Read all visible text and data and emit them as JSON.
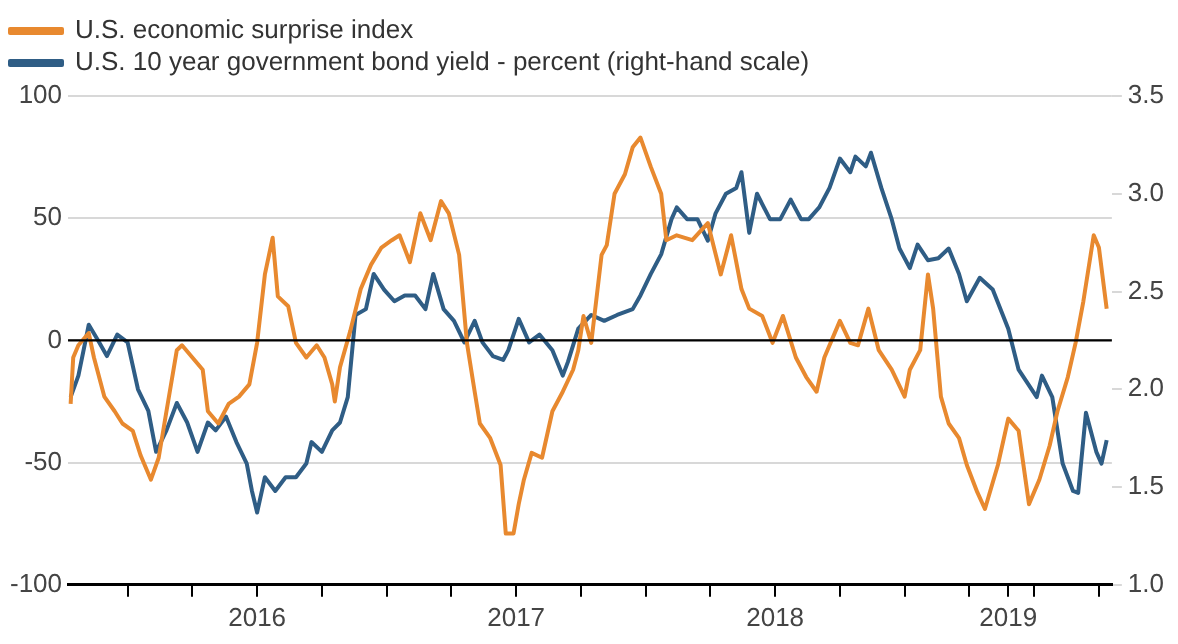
{
  "chart_data": {
    "type": "line",
    "legend": "top left",
    "grid": "y",
    "xlim": [
      2015.77,
      2019.8
    ],
    "xticks": [
      {
        "value": 2016,
        "label": null
      },
      {
        "value": 2016.25,
        "label": null
      },
      {
        "value": 2016.5,
        "label": "2016"
      },
      {
        "value": 2016.75,
        "label": null
      },
      {
        "value": 2017,
        "label": null
      },
      {
        "value": 2017.25,
        "label": null
      },
      {
        "value": 2017.5,
        "label": "2017"
      },
      {
        "value": 2017.75,
        "label": null
      },
      {
        "value": 2018,
        "label": null
      },
      {
        "value": 2018.25,
        "label": null
      },
      {
        "value": 2018.5,
        "label": "2018"
      },
      {
        "value": 2018.75,
        "label": null
      },
      {
        "value": 2019,
        "label": null
      },
      {
        "value": 2019.25,
        "label": null
      },
      {
        "value": 2019.4,
        "label": "2019"
      },
      {
        "value": 2019.5,
        "label": null
      },
      {
        "value": 2019.75,
        "label": null
      }
    ],
    "ylim": [
      -100,
      100
    ],
    "yticks": [
      -100,
      -50,
      0,
      50,
      100
    ],
    "y2lim": [
      1,
      3.5
    ],
    "y2ticks": [
      {
        "value": 1,
        "label": "1.0"
      },
      1.5,
      {
        "value": 2,
        "label": "2.0"
      },
      2.5,
      {
        "value": 3,
        "label": "3.0"
      },
      3.5
    ],
    "ref_lines": [
      {
        "axis": "y",
        "value": 0,
        "color": "#000000"
      }
    ],
    "series": [
      {
        "name": "U.S. economic surprise index",
        "color": "#e8892f",
        "x": [
          2015.78,
          2015.79,
          2015.81,
          2015.85,
          2015.87,
          2015.91,
          2015.95,
          2015.98,
          2016.02,
          2016.05,
          2016.09,
          2016.12,
          2016.15,
          2016.19,
          2016.21,
          2016.25,
          2016.29,
          2016.31,
          2016.35,
          2016.39,
          2016.43,
          2016.47,
          2016.5,
          2016.53,
          2016.56,
          2016.58,
          2016.62,
          2016.65,
          2016.69,
          2016.73,
          2016.76,
          2016.79,
          2016.8,
          2016.82,
          2016.86,
          2016.9,
          2016.94,
          2016.98,
          2017.02,
          2017.05,
          2017.09,
          2017.13,
          2017.17,
          2017.21,
          2017.24,
          2017.28,
          2017.31,
          2017.34,
          2017.36,
          2017.4,
          2017.44,
          2017.46,
          2017.49,
          2017.51,
          2017.53,
          2017.56,
          2017.6,
          2017.64,
          2017.68,
          2017.72,
          2017.74,
          2017.76,
          2017.79,
          2017.83,
          2017.85,
          2017.88,
          2017.92,
          2017.95,
          2017.98,
          2018.02,
          2018.06,
          2018.08,
          2018.12,
          2018.18,
          2018.24,
          2018.29,
          2018.33,
          2018.37,
          2018.4,
          2018.45,
          2018.49,
          2018.53,
          2018.58,
          2018.62,
          2018.66,
          2018.69,
          2018.75,
          2018.79,
          2018.82,
          2018.86,
          2018.9,
          2018.95,
          2019.0,
          2019.02,
          2019.06,
          2019.09,
          2019.11,
          2019.14,
          2019.17,
          2019.21,
          2019.24,
          2019.28,
          2019.31,
          2019.36,
          2019.4,
          2019.44,
          2019.48,
          2019.52,
          2019.56,
          2019.59,
          2019.63,
          2019.66,
          2019.69,
          2019.73,
          2019.75,
          2019.78
        ],
        "values": [
          -26,
          -7,
          -2,
          3,
          -7,
          -23,
          -29,
          -34,
          -37,
          -47,
          -57,
          -48,
          -29,
          -4,
          -2,
          -7,
          -12,
          -29,
          -34,
          -26,
          -23,
          -18,
          -1,
          27,
          42,
          18,
          14,
          -1,
          -7,
          -2,
          -7,
          -18,
          -25,
          -11,
          4,
          21,
          31,
          38,
          41,
          43,
          32,
          52,
          41,
          57,
          52,
          35,
          -1,
          -21,
          -34,
          -40,
          -51,
          -79,
          -79,
          -67,
          -57,
          -46,
          -48,
          -29,
          -21,
          -12,
          -4,
          10,
          -1,
          35,
          39,
          60,
          68,
          79,
          83,
          71,
          60,
          41,
          43,
          41,
          48,
          27,
          43,
          21,
          13,
          10,
          -1,
          10,
          -7,
          -15,
          -21,
          -7,
          8,
          -1,
          -2,
          13,
          -4,
          -12,
          -23,
          -12,
          -4,
          27,
          13,
          -23,
          -34,
          -40,
          -51,
          -62,
          -69,
          -51,
          -32,
          -37,
          -67,
          -57,
          -43,
          -29,
          -15,
          -1,
          16,
          43,
          38,
          13
        ]
      },
      {
        "name": "U.S. 10 year government bond yield - percent (right-hand scale)",
        "color": "#2f5d85",
        "axis": "y2",
        "x": [
          2015.78,
          2015.81,
          2015.85,
          2015.89,
          2015.92,
          2015.96,
          2016.0,
          2016.04,
          2016.08,
          2016.11,
          2016.15,
          2016.19,
          2016.23,
          2016.27,
          2016.31,
          2016.34,
          2016.38,
          2016.42,
          2016.46,
          2016.48,
          2016.5,
          2016.53,
          2016.57,
          2016.61,
          2016.65,
          2016.69,
          2016.71,
          2016.75,
          2016.79,
          2016.82,
          2016.85,
          2016.88,
          2016.92,
          2016.95,
          2016.99,
          2017.03,
          2017.07,
          2017.11,
          2017.15,
          2017.18,
          2017.22,
          2017.26,
          2017.3,
          2017.34,
          2017.37,
          2017.41,
          2017.45,
          2017.47,
          2017.51,
          2017.55,
          2017.59,
          2017.64,
          2017.68,
          2017.7,
          2017.74,
          2017.79,
          2017.84,
          2017.89,
          2017.95,
          2017.98,
          2018.02,
          2018.06,
          2018.1,
          2018.12,
          2018.16,
          2018.2,
          2018.24,
          2018.27,
          2018.31,
          2018.35,
          2018.37,
          2018.4,
          2018.43,
          2018.48,
          2018.52,
          2018.56,
          2018.6,
          2018.63,
          2018.67,
          2018.71,
          2018.75,
          2018.79,
          2018.81,
          2018.85,
          2018.87,
          2018.91,
          2018.95,
          2018.98,
          2019.02,
          2019.05,
          2019.09,
          2019.13,
          2019.17,
          2019.21,
          2019.24,
          2019.29,
          2019.34,
          2019.4,
          2019.44,
          2019.47,
          2019.51,
          2019.53,
          2019.57,
          2019.61,
          2019.65,
          2019.67,
          2019.7,
          2019.74,
          2019.76,
          2019.78
        ],
        "values": [
          1.96,
          2.07,
          2.33,
          2.24,
          2.17,
          2.28,
          2.24,
          2.0,
          1.89,
          1.68,
          1.79,
          1.93,
          1.83,
          1.68,
          1.83,
          1.79,
          1.86,
          1.73,
          1.62,
          1.48,
          1.37,
          1.55,
          1.48,
          1.55,
          1.55,
          1.62,
          1.73,
          1.68,
          1.79,
          1.83,
          1.96,
          2.38,
          2.41,
          2.59,
          2.51,
          2.45,
          2.48,
          2.48,
          2.41,
          2.59,
          2.41,
          2.35,
          2.24,
          2.35,
          2.24,
          2.17,
          2.15,
          2.2,
          2.36,
          2.24,
          2.28,
          2.2,
          2.07,
          2.14,
          2.31,
          2.38,
          2.35,
          2.38,
          2.41,
          2.48,
          2.59,
          2.69,
          2.87,
          2.93,
          2.87,
          2.87,
          2.76,
          2.9,
          3.0,
          3.03,
          3.11,
          2.8,
          3.0,
          2.87,
          2.87,
          2.97,
          2.87,
          2.87,
          2.93,
          3.03,
          3.18,
          3.11,
          3.19,
          3.14,
          3.21,
          3.03,
          2.87,
          2.72,
          2.62,
          2.74,
          2.66,
          2.67,
          2.72,
          2.59,
          2.45,
          2.57,
          2.51,
          2.31,
          2.1,
          2.04,
          1.96,
          2.07,
          1.96,
          1.62,
          1.48,
          1.47,
          1.88,
          1.68,
          1.62,
          1.74
        ]
      }
    ]
  }
}
